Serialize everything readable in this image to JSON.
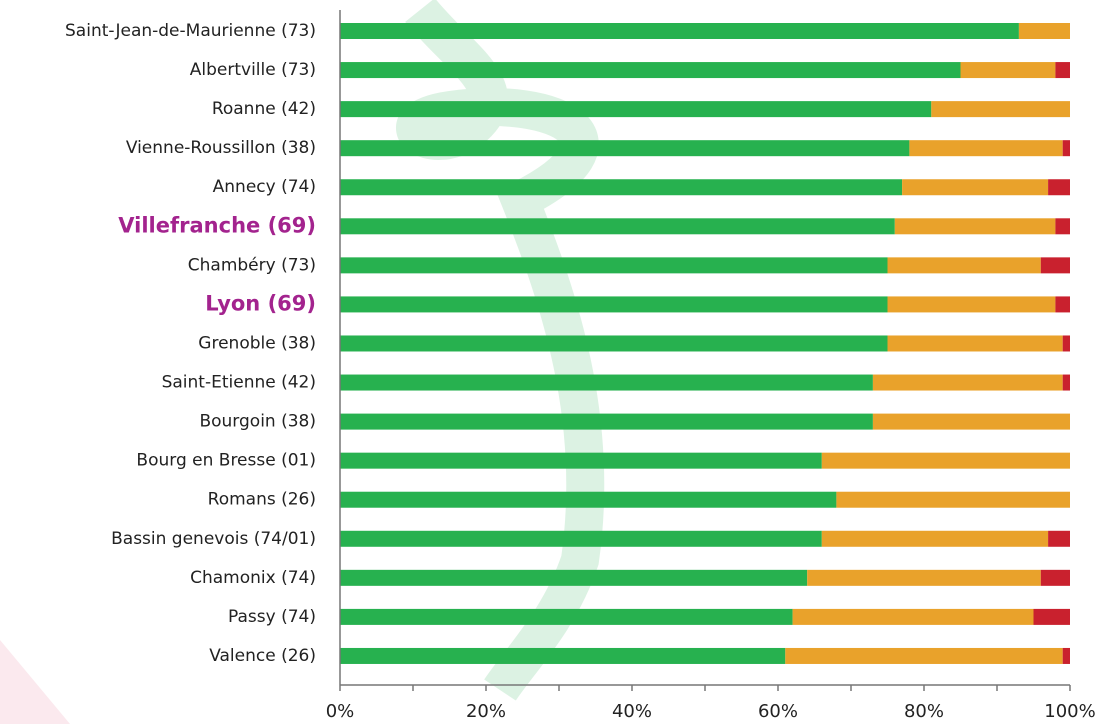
{
  "chart_data": {
    "type": "stacked-bar-horizontal",
    "categories": [
      "Saint-Jean-de-Maurienne (73)",
      "Albertville (73)",
      "Roanne (42)",
      "Vienne-Roussillon (38)",
      "Annecy (74)",
      "Villefranche (69)",
      "Chambéry (73)",
      "Lyon (69)",
      "Grenoble (38)",
      "Saint-Etienne (42)",
      "Bourgoin (38)",
      "Bourg en Bresse (01)",
      "Romans (26)",
      "Bassin genevois (74/01)",
      "Chamonix (74)",
      "Passy (74)",
      "Valence (26)"
    ],
    "highlighted_categories": [
      5,
      7
    ],
    "highlight_color": "#a3238e",
    "series": [
      {
        "color": "#27b14f",
        "values": [
          93,
          85,
          81,
          78,
          77,
          76,
          75,
          75,
          75,
          73,
          73,
          66,
          68,
          66,
          64,
          62,
          61
        ]
      },
      {
        "color": "#e9a22b",
        "values": [
          7,
          13,
          19,
          21,
          20,
          22,
          21,
          23,
          24,
          26,
          27,
          34,
          32,
          31,
          32,
          33,
          38
        ]
      },
      {
        "color": "#c9212e",
        "values": [
          0,
          2,
          0,
          1,
          3,
          2,
          4,
          2,
          1,
          1,
          0,
          0,
          0,
          3,
          4,
          5,
          1
        ]
      }
    ],
    "xlim": [
      0,
      100
    ],
    "xticks": [
      {
        "value": 0,
        "label": "0%"
      },
      {
        "value": 20,
        "label": "20%"
      },
      {
        "value": 40,
        "label": "40%"
      },
      {
        "value": 60,
        "label": "60%"
      },
      {
        "value": 80,
        "label": "80%"
      },
      {
        "value": 100,
        "label": "100%"
      }
    ],
    "xminorticks": [
      10,
      30,
      50,
      70,
      90
    ]
  }
}
